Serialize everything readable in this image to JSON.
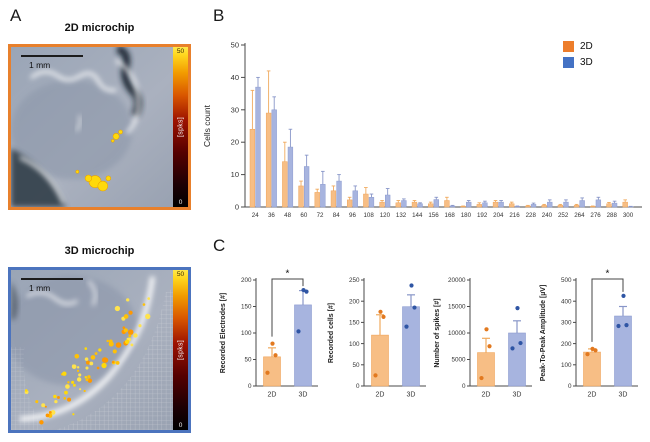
{
  "figure": {
    "panel_a_label": "A",
    "panel_b_label": "B",
    "panel_c_label": "C"
  },
  "panelA": {
    "chip2d": {
      "title": "2D microchip",
      "scale_label": "1 mm",
      "border_color": "#E8802C"
    },
    "chip3d": {
      "title": "3D microchip",
      "scale_label": "1 mm",
      "border_color": "#4C74BE"
    },
    "colorbar": {
      "max": "50",
      "min": "0",
      "unit": "[spks]"
    }
  },
  "legend": {
    "items": [
      {
        "label": "2D",
        "color": "#ED7D2B"
      },
      {
        "label": "3D",
        "color": "#4472C4"
      }
    ]
  },
  "colors": {
    "bar2d_fill": "#F7BE85",
    "bar2d_edge": "#EFA45A",
    "err2d": "#F0AA5E",
    "point2d": "#E2791F",
    "bar3d_fill": "#A7B4DF",
    "bar3d_edge": "#8C9BD0",
    "err3d": "#8896C8",
    "point3d": "#2F55A4",
    "axis": "#4a4a4a"
  },
  "chart_data": [
    {
      "type": "bar",
      "id": "cells-count",
      "title": "",
      "xlabel": "",
      "ylabel": "Cells count",
      "ylim": [
        0,
        50
      ],
      "ytick_step": 10,
      "legend_position": "top-right",
      "categories": [
        "24",
        "36",
        "48",
        "60",
        "72",
        "84",
        "96",
        "108",
        "120",
        "132",
        "144",
        "156",
        "168",
        "180",
        "192",
        "204",
        "216",
        "228",
        "240",
        "252",
        "264",
        "276",
        "288",
        "300"
      ],
      "series": [
        {
          "name": "2D",
          "values": [
            24,
            29,
            14,
            6.5,
            4.5,
            5,
            2.2,
            4,
            1.5,
            1.3,
            1.5,
            1,
            2,
            0.2,
            0.8,
            1.5,
            1,
            0.3,
            0.5,
            0.5,
            0.5,
            0.2,
            1,
            1.5
          ],
          "errors": [
            12,
            13,
            6,
            1.5,
            1,
            1.5,
            0.8,
            2,
            0.5,
            0.7,
            0.5,
            0.5,
            1,
            0.1,
            0.5,
            0.5,
            0.5,
            0.2,
            0.3,
            0.3,
            0.3,
            0.1,
            0.4,
            0.7
          ]
        },
        {
          "name": "3D",
          "values": [
            37,
            30,
            18.5,
            12.5,
            7,
            8,
            5,
            3,
            3.7,
            2,
            1,
            2.3,
            0.3,
            1.5,
            1.3,
            1.5,
            0.2,
            0.8,
            1.5,
            1.5,
            2,
            2.2,
            1.2,
            0.1
          ],
          "errors": [
            3,
            4,
            5.5,
            3.5,
            4,
            2,
            1.5,
            1,
            2,
            0.5,
            0.3,
            0.7,
            0.2,
            0.5,
            0.5,
            0.5,
            0.1,
            0.4,
            0.7,
            0.7,
            0.8,
            0.8,
            0.6,
            0.1
          ]
        }
      ]
    },
    {
      "type": "bar",
      "id": "recorded-electrodes",
      "ylabel": "Recorded  Electrodes [#]",
      "ylim": [
        0,
        200
      ],
      "ytick_step": 50,
      "categories": [
        "2D",
        "3D"
      ],
      "bars": [
        {
          "name": "2D",
          "value": 55,
          "error": 17,
          "points": [
            25,
            58,
            80
          ]
        },
        {
          "name": "3D",
          "value": 153,
          "error": 27,
          "points": [
            103,
            178,
            181
          ]
        }
      ],
      "significance": "*"
    },
    {
      "type": "bar",
      "id": "recorded-cells",
      "ylabel": "Recorded cells [#]",
      "ylim": [
        0,
        250
      ],
      "ytick_step": 50,
      "categories": [
        "2D",
        "3D"
      ],
      "bars": [
        {
          "name": "2D",
          "value": 120,
          "error": 48,
          "points": [
            25,
            163,
            175
          ]
        },
        {
          "name": "3D",
          "value": 187,
          "error": 28,
          "points": [
            140,
            185,
            237
          ]
        }
      ],
      "significance": null
    },
    {
      "type": "bar",
      "id": "number-of-spikes",
      "ylabel": "Number of spikes [#]",
      "ylim": [
        0,
        20000
      ],
      "ytick_step": 5000,
      "categories": [
        "2D",
        "3D"
      ],
      "bars": [
        {
          "name": "2D",
          "value": 6300,
          "error": 2700,
          "points": [
            1500,
            7500,
            10700
          ]
        },
        {
          "name": "3D",
          "value": 10000,
          "error": 2300,
          "points": [
            7100,
            8100,
            14700
          ]
        }
      ],
      "significance": null
    },
    {
      "type": "bar",
      "id": "peak-to-peak-amplitude",
      "ylabel": "Peak-To-Peak Amplitude [µV]",
      "ylim": [
        0,
        500
      ],
      "ytick_step": 100,
      "categories": [
        "2D",
        "3D"
      ],
      "bars": [
        {
          "name": "2D",
          "value": 160,
          "error": 15,
          "points": [
            150,
            168,
            175
          ]
        },
        {
          "name": "3D",
          "value": 330,
          "error": 45,
          "points": [
            283,
            287,
            425
          ]
        }
      ],
      "significance": "*"
    }
  ]
}
